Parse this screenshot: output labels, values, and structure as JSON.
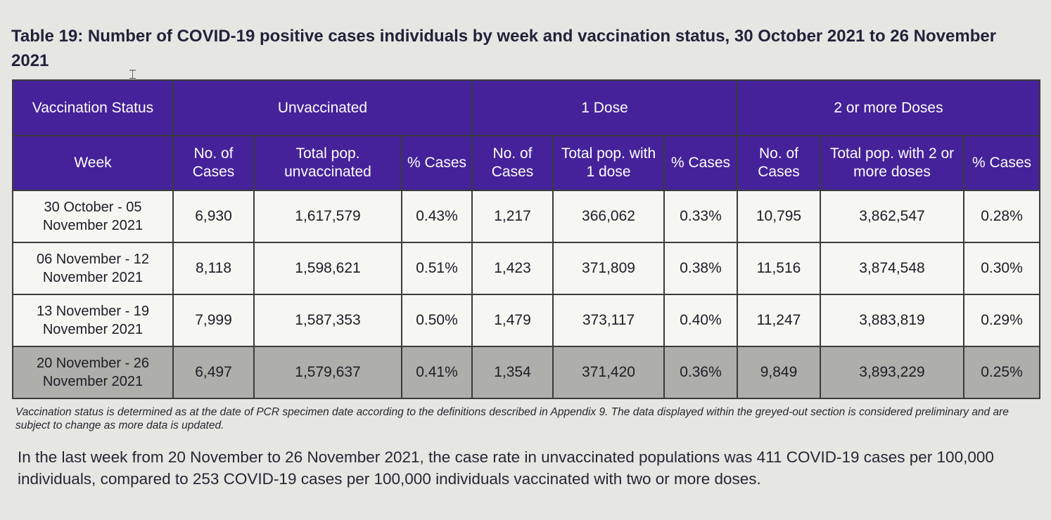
{
  "title": "Table 19: Number of COVID-19 positive cases individuals by week and vaccination status, 30 October 2021 to 26 November 2021",
  "table": {
    "group_headers": {
      "status": "Vaccination Status",
      "unvaccinated": "Unvaccinated",
      "one_dose": "1 Dose",
      "two_doses": "2 or more Doses"
    },
    "sub_headers": {
      "week": "Week",
      "unvax_cases": "No. of Cases",
      "unvax_pop": "Total pop. unvaccinated",
      "unvax_pct": "% Cases",
      "dose1_cases": "No. of Cases",
      "dose1_pop": "Total pop. with 1 dose",
      "dose1_pct": "% Cases",
      "dose2_cases": "No. of Cases",
      "dose2_pop": "Total pop. with 2 or more doses",
      "dose2_pct": "% Cases"
    },
    "rows": [
      [
        "30 October - 05 November 2021",
        "6,930",
        "1,617,579",
        "0.43%",
        "1,217",
        "366,062",
        "0.33%",
        "10,795",
        "3,862,547",
        "0.28%"
      ],
      [
        "06 November - 12 November 2021",
        "8,118",
        "1,598,621",
        "0.51%",
        "1,423",
        "371,809",
        "0.38%",
        "11,516",
        "3,874,548",
        "0.30%"
      ],
      [
        "13 November - 19 November 2021",
        "7,999",
        "1,587,353",
        "0.50%",
        "1,479",
        "373,117",
        "0.40%",
        "11,247",
        "3,883,819",
        "0.29%"
      ],
      [
        "20 November - 26 November 2021",
        "6,497",
        "1,579,637",
        "0.41%",
        "1,354",
        "371,420",
        "0.36%",
        "9,849",
        "3,893,229",
        "0.25%"
      ]
    ]
  },
  "note": "Vaccination status is determined as at the date of PCR specimen date according to the definitions described in Appendix 9. The data displayed within the greyed-out section is considered preliminary and are subject to change as more data is updated.",
  "paragraph": "In the last week from 20 November to 26 November 2021, the case rate in unvaccinated populations was 411 COVID-19 cases per 100,000 individuals, compared to 253 COVID-19 cases per 100,000 individuals vaccinated with two or more doses.",
  "colors": {
    "header_bg": "#45229a",
    "header_text": "#ffffff",
    "row_bg": "#f6f6f3",
    "grey_row_bg": "#aeaeaa"
  }
}
